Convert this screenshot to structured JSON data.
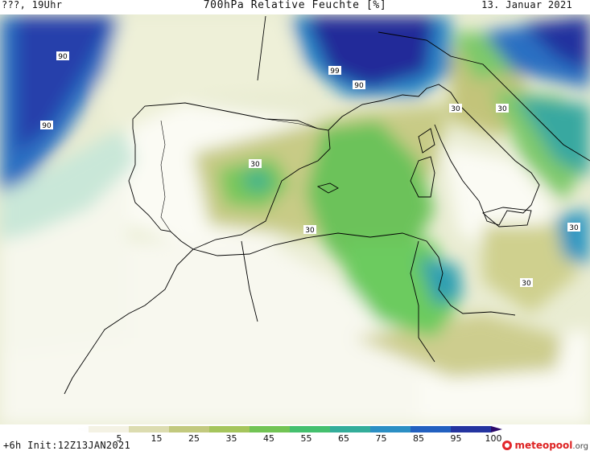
{
  "header": {
    "left_label": "???, 19Uhr",
    "title": "700hPa Relative Feuchte [%]",
    "date": "13. Januar 2021"
  },
  "colorbar": {
    "ticks": [
      "5",
      "15",
      "25",
      "35",
      "45",
      "55",
      "65",
      "75",
      "85",
      "95",
      "100"
    ],
    "colors": [
      "#f4f2e4",
      "#dcdcb0",
      "#c2c97e",
      "#a5c55c",
      "#72c454",
      "#44c06e",
      "#33ad9a",
      "#2b8fc4",
      "#2260c0",
      "#2434a0",
      "#2d0b6b"
    ]
  },
  "contour_labels": [
    "90",
    "90",
    "99",
    "90",
    "30",
    "30",
    "30",
    "30",
    "30",
    "30"
  ],
  "footer": {
    "init": "+6h  Init:12Z13JAN2021",
    "brand_main": "meteopool",
    "brand_suffix": ".org"
  }
}
